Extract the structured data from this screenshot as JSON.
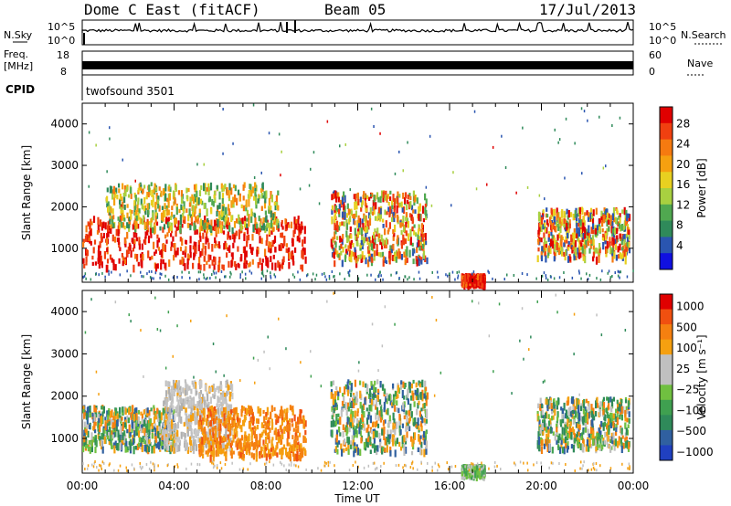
{
  "header": {
    "station": "Dome C East (fitACF)",
    "beam": "Beam 05",
    "date": "17/Jul/2013"
  },
  "strip_labels": {
    "nsky": "N.Sky",
    "nsky_ticks": [
      "10^5",
      "10^0"
    ],
    "nsearch": "N.Search",
    "nsearch_ticks": [
      "10^5",
      "10^0"
    ],
    "freq": "Freq.",
    "freq_unit": "[MHz]",
    "freq_ticks": [
      "18",
      "8"
    ],
    "nave": "Nave",
    "nave_ticks": [
      "60",
      "0"
    ],
    "cpid": "CPID",
    "cpid_value": "twofsound 3501"
  },
  "chart_data": [
    {
      "type": "heatmap",
      "name": "power",
      "ylabel": "Slant Range [km]",
      "yticks": [
        "1000",
        "2000",
        "3000",
        "4000"
      ],
      "ylim": [
        180,
        4500
      ],
      "xlim": [
        0,
        24
      ],
      "xticks": [
        "00:00",
        "04:00",
        "08:00",
        "12:00",
        "16:00",
        "20:00",
        "00:00"
      ],
      "colorbar_label": "Power [dB]",
      "colorbar_ticks": [
        "4",
        "8",
        "12",
        "16",
        "20",
        "24",
        "28"
      ],
      "colorbar_colors": [
        "#1010e0",
        "#2a55b0",
        "#2f8a5a",
        "#50a850",
        "#a8d040",
        "#e8d020",
        "#f5a010",
        "#f57a10",
        "#f04010",
        "#e00000"
      ],
      "regions": [
        {
          "t0": 0.0,
          "t1": 9.7,
          "r_min": 600,
          "r_max": 1800,
          "level": "high"
        },
        {
          "t0": 1.0,
          "t1": 8.5,
          "r_min": 1500,
          "r_max": 2600,
          "level": "mid"
        },
        {
          "t0": 10.8,
          "t1": 15.0,
          "r_min": 700,
          "r_max": 2400,
          "level": "mixed"
        },
        {
          "t0": 16.5,
          "t1": 17.5,
          "r_min": 180,
          "r_max": 400,
          "level": "high"
        },
        {
          "t0": 19.8,
          "t1": 23.8,
          "r_min": 800,
          "r_max": 2000,
          "level": "mixed"
        }
      ]
    },
    {
      "type": "heatmap",
      "name": "velocity",
      "ylabel": "Slant Range [km]",
      "yticks": [
        "1000",
        "2000",
        "3000",
        "4000"
      ],
      "ylim": [
        180,
        4500
      ],
      "xlim": [
        0,
        24
      ],
      "xticks": [
        "00:00",
        "04:00",
        "08:00",
        "12:00",
        "16:00",
        "20:00",
        "00:00"
      ],
      "xlabel": "Time UT",
      "colorbar_label": "Velocity [m s⁻¹]",
      "colorbar_ticks": [
        "1000",
        "500",
        "100",
        "25",
        "−25",
        "−100",
        "−500",
        "−1000"
      ],
      "colorbar_colors": [
        "#2040c0",
        "#3060a0",
        "#2f8a5a",
        "#3fa050",
        "#70c040",
        "#c0c0c0",
        "#c0c0c0",
        "#f5a010",
        "#f58010",
        "#f05010",
        "#e00000"
      ],
      "regions": [
        {
          "t0": 0.0,
          "t1": 4.0,
          "r_min": 800,
          "r_max": 1800,
          "level": "mixed"
        },
        {
          "t0": 3.5,
          "t1": 6.5,
          "r_min": 800,
          "r_max": 2400,
          "level": "gray"
        },
        {
          "t0": 5.0,
          "t1": 9.7,
          "r_min": 600,
          "r_max": 1800,
          "level": "orange"
        },
        {
          "t0": 10.8,
          "t1": 15.0,
          "r_min": 700,
          "r_max": 2400,
          "level": "mixed"
        },
        {
          "t0": 16.5,
          "t1": 17.5,
          "r_min": 180,
          "r_max": 400,
          "level": "green"
        },
        {
          "t0": 19.8,
          "t1": 23.8,
          "r_min": 800,
          "r_max": 2000,
          "level": "mixed"
        }
      ]
    }
  ]
}
